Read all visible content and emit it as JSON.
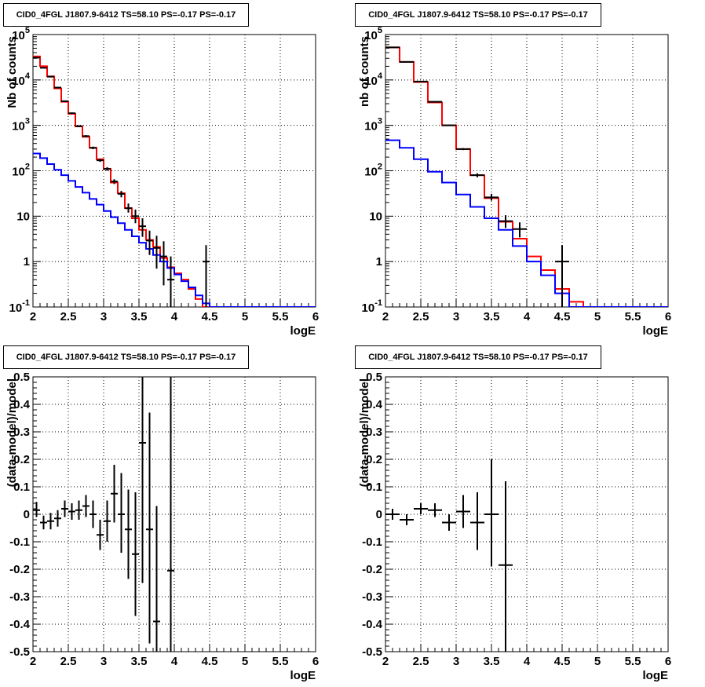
{
  "chart_data": [
    {
      "type": "step-histogram",
      "title": "CID0_4FGL J1807.9-6412 TS=58.10 PS=-0.17 PS=-0.17",
      "xlabel": "logE",
      "ylabel": "Nb of counts",
      "xlim": [
        2,
        6
      ],
      "ylim": [
        0.1,
        100000
      ],
      "yscale": "log",
      "grid": true,
      "xticks": [
        "2",
        "2.5",
        "3",
        "3.5",
        "4",
        "4.5",
        "5",
        "5.5",
        "6"
      ],
      "yticks": [
        {
          "value": 0.1,
          "base": "10",
          "exp": "-1"
        },
        {
          "value": 1,
          "label": "1"
        },
        {
          "value": 10,
          "label": "10"
        },
        {
          "value": 100,
          "base": "10",
          "exp": "2"
        },
        {
          "value": 1000,
          "base": "10",
          "exp": "3"
        },
        {
          "value": 10000,
          "base": "10",
          "exp": "4"
        },
        {
          "value": 100000,
          "base": "10",
          "exp": "5"
        }
      ],
      "bin_edges": [
        2.0,
        2.1,
        2.2,
        2.3,
        2.4,
        2.5,
        2.6,
        2.7,
        2.8,
        2.9,
        3.0,
        3.1,
        3.2,
        3.3,
        3.4,
        3.5,
        3.6,
        3.7,
        3.8,
        3.9,
        4.0,
        4.1,
        4.2,
        4.3,
        4.4,
        4.5,
        4.6,
        4.7,
        4.8,
        4.9,
        5.0,
        5.1,
        5.2,
        5.3,
        5.4,
        5.5,
        5.6,
        5.7,
        5.8,
        5.9,
        6.0
      ],
      "series": [
        {
          "color": "#ff0000",
          "values": [
            33000,
            20000,
            12000,
            6500,
            3300,
            1800,
            950,
            560,
            320,
            180,
            110,
            55,
            32,
            15,
            9,
            5,
            3,
            2.1,
            1.2,
            0.75,
            0.55,
            0.4,
            0.25,
            0.15,
            0.1,
            0.1,
            0.1,
            0.1,
            0.1,
            0.1,
            0.1,
            0.1,
            0.1,
            0.1,
            0.1,
            0.1,
            0.1,
            0.1,
            0.1,
            0.1
          ]
        },
        {
          "color": "#0000ff",
          "values": [
            240,
            190,
            140,
            105,
            80,
            60,
            44,
            33,
            24,
            18,
            13,
            9.5,
            7,
            5,
            3.6,
            2.6,
            1.9,
            1.4,
            1.0,
            0.72,
            0.52,
            0.37,
            0.27,
            0.18,
            0.12,
            0.1,
            0.1,
            0.1,
            0.1,
            0.1,
            0.1,
            0.1,
            0.1,
            0.1,
            0.1,
            0.1,
            0.1,
            0.1,
            0.1,
            0.1
          ]
        }
      ],
      "data_points": [
        {
          "x": 2.05,
          "y": 31000,
          "lo": 30000,
          "hi": 32000
        },
        {
          "x": 2.15,
          "y": 18500,
          "lo": 18000,
          "hi": 19000
        },
        {
          "x": 2.25,
          "y": 11800,
          "lo": 11500,
          "hi": 12100
        },
        {
          "x": 2.35,
          "y": 6800,
          "lo": 6600,
          "hi": 7000
        },
        {
          "x": 2.45,
          "y": 3400,
          "lo": 3300,
          "hi": 3500
        },
        {
          "x": 2.55,
          "y": 1850,
          "lo": 1780,
          "hi": 1920
        },
        {
          "x": 2.65,
          "y": 960,
          "lo": 910,
          "hi": 1010
        },
        {
          "x": 2.75,
          "y": 580,
          "lo": 550,
          "hi": 610
        },
        {
          "x": 2.85,
          "y": 320,
          "lo": 300,
          "hi": 340
        },
        {
          "x": 2.95,
          "y": 170,
          "lo": 157,
          "hi": 183
        },
        {
          "x": 3.05,
          "y": 110,
          "lo": 100,
          "hi": 120
        },
        {
          "x": 3.15,
          "y": 58,
          "lo": 51,
          "hi": 65
        },
        {
          "x": 3.25,
          "y": 31,
          "lo": 26,
          "hi": 36
        },
        {
          "x": 3.35,
          "y": 15,
          "lo": 12,
          "hi": 19
        },
        {
          "x": 3.45,
          "y": 10,
          "lo": 7,
          "hi": 14
        },
        {
          "x": 3.55,
          "y": 6,
          "lo": 3.5,
          "hi": 9
        },
        {
          "x": 3.65,
          "y": 2.9,
          "lo": 1.4,
          "hi": 4.8
        },
        {
          "x": 3.75,
          "y": 2.0,
          "lo": 0.7,
          "hi": 3.7
        },
        {
          "x": 3.85,
          "y": 1.3,
          "lo": 0.3,
          "hi": 2.8
        },
        {
          "x": 3.95,
          "y": 0.4,
          "lo": 0.1,
          "hi": 1.3
        },
        {
          "x": 4.45,
          "y": 1.0,
          "lo": 0.1,
          "hi": 2.3
        }
      ]
    },
    {
      "type": "step-histogram",
      "title": "CID0_4FGL J1807.9-6412 TS=58.10 PS=-0.17 PS=-0.17",
      "xlabel": "logE",
      "ylabel": "nb of counts",
      "xlim": [
        2,
        6
      ],
      "ylim": [
        0.1,
        100000
      ],
      "yscale": "log",
      "grid": true,
      "xticks": [
        "2",
        "2.5",
        "3",
        "3.5",
        "4",
        "4.5",
        "5",
        "5.5",
        "6"
      ],
      "yticks": [
        {
          "value": 0.1,
          "base": "10",
          "exp": "-1"
        },
        {
          "value": 1,
          "label": "1"
        },
        {
          "value": 10,
          "label": "10"
        },
        {
          "value": 100,
          "base": "10",
          "exp": "2"
        },
        {
          "value": 1000,
          "base": "10",
          "exp": "3"
        },
        {
          "value": 10000,
          "base": "10",
          "exp": "4"
        },
        {
          "value": 100000,
          "base": "10",
          "exp": "5"
        }
      ],
      "bin_edges": [
        2.0,
        2.2,
        2.4,
        2.6,
        2.8,
        3.0,
        3.2,
        3.4,
        3.6,
        3.8,
        4.0,
        4.2,
        4.4,
        4.6,
        4.8,
        5.0,
        5.2,
        5.4,
        5.6,
        5.8,
        6.0
      ],
      "series": [
        {
          "color": "#ff0000",
          "values": [
            52000,
            25000,
            9000,
            3200,
            1000,
            300,
            80,
            25,
            7.5,
            3.2,
            1.3,
            0.65,
            0.25,
            0.13,
            0.1,
            0.1,
            0.1,
            0.1,
            0.1,
            0.1
          ]
        },
        {
          "color": "#0000ff",
          "values": [
            470,
            320,
            180,
            95,
            55,
            30,
            16,
            9,
            5,
            2.2,
            1.0,
            0.5,
            0.2,
            0.1,
            0.1,
            0.1,
            0.1,
            0.1,
            0.1,
            0.1
          ]
        }
      ],
      "data_points": [
        {
          "x": 2.1,
          "y": 52000,
          "lo": 51000,
          "hi": 53000
        },
        {
          "x": 2.3,
          "y": 25000,
          "lo": 24500,
          "hi": 25500
        },
        {
          "x": 2.5,
          "y": 9200,
          "lo": 9000,
          "hi": 9400
        },
        {
          "x": 2.7,
          "y": 3300,
          "lo": 3200,
          "hi": 3400
        },
        {
          "x": 2.9,
          "y": 1000,
          "lo": 970,
          "hi": 1030
        },
        {
          "x": 3.1,
          "y": 300,
          "lo": 285,
          "hi": 315
        },
        {
          "x": 3.3,
          "y": 80,
          "lo": 72,
          "hi": 88
        },
        {
          "x": 3.5,
          "y": 26,
          "lo": 22,
          "hi": 31
        },
        {
          "x": 3.7,
          "y": 7.8,
          "lo": 5.5,
          "hi": 10.5
        },
        {
          "x": 3.9,
          "y": 5.2,
          "lo": 3.4,
          "hi": 7.3
        },
        {
          "x": 4.5,
          "y": 1.0,
          "lo": 0.1,
          "hi": 2.3
        }
      ]
    },
    {
      "type": "errorbar",
      "title": "CID0_4FGL J1807.9-6412 TS=58.10 PS=-0.17 PS=-0.17",
      "xlabel": "logE",
      "ylabel": "(data-model)/model",
      "xlim": [
        2,
        6
      ],
      "ylim": [
        -0.5,
        0.5
      ],
      "yscale": "linear",
      "grid": true,
      "xticks": [
        "2",
        "2.5",
        "3",
        "3.5",
        "4",
        "4.5",
        "5",
        "5.5",
        "6"
      ],
      "yticks": [
        "-0.5",
        "-0.4",
        "-0.3",
        "-0.2",
        "-0.1",
        "0",
        "0.1",
        "0.2",
        "0.3",
        "0.4",
        "0.5"
      ],
      "xerr": 0.05,
      "data_points": [
        {
          "x": 2.05,
          "y": 0.015,
          "lo": -0.01,
          "hi": 0.045
        },
        {
          "x": 2.15,
          "y": -0.03,
          "lo": -0.055,
          "hi": -0.005
        },
        {
          "x": 2.25,
          "y": -0.025,
          "lo": -0.055,
          "hi": 0.005
        },
        {
          "x": 2.35,
          "y": -0.015,
          "lo": -0.045,
          "hi": 0.015
        },
        {
          "x": 2.45,
          "y": 0.02,
          "lo": -0.01,
          "hi": 0.05
        },
        {
          "x": 2.55,
          "y": 0.01,
          "lo": -0.02,
          "hi": 0.04
        },
        {
          "x": 2.65,
          "y": 0.015,
          "lo": -0.02,
          "hi": 0.05
        },
        {
          "x": 2.75,
          "y": 0.03,
          "lo": -0.01,
          "hi": 0.07
        },
        {
          "x": 2.85,
          "y": 0.0,
          "lo": -0.05,
          "hi": 0.05
        },
        {
          "x": 2.95,
          "y": -0.075,
          "lo": -0.13,
          "hi": -0.02
        },
        {
          "x": 3.05,
          "y": -0.025,
          "lo": -0.1,
          "hi": 0.05
        },
        {
          "x": 3.15,
          "y": 0.075,
          "lo": -0.03,
          "hi": 0.18
        },
        {
          "x": 3.25,
          "y": 0.0,
          "lo": -0.14,
          "hi": 0.15
        },
        {
          "x": 3.35,
          "y": -0.055,
          "lo": -0.235,
          "hi": 0.09
        },
        {
          "x": 3.45,
          "y": -0.145,
          "lo": -0.37,
          "hi": 0.08
        },
        {
          "x": 3.55,
          "y": 0.26,
          "lo": -0.25,
          "hi": 0.5
        },
        {
          "x": 3.65,
          "y": -0.055,
          "lo": -0.47,
          "hi": 0.37
        },
        {
          "x": 3.75,
          "y": -0.39,
          "lo": -0.5,
          "hi": 0.03
        },
        {
          "x": 3.95,
          "y": -0.205,
          "lo": -0.5,
          "hi": 0.5
        }
      ]
    },
    {
      "type": "errorbar",
      "title": "CID0_4FGL J1807.9-6412 TS=58.10 PS=-0.17 PS=-0.17",
      "xlabel": "logE",
      "ylabel": "(data-model)/model",
      "xlim": [
        2,
        6
      ],
      "ylim": [
        -0.5,
        0.5
      ],
      "yscale": "linear",
      "grid": true,
      "xticks": [
        "2",
        "2.5",
        "3",
        "3.5",
        "4",
        "4.5",
        "5",
        "5.5",
        "6"
      ],
      "yticks": [
        "-0.5",
        "-0.4",
        "-0.3",
        "-0.2",
        "-0.1",
        "0",
        "0.1",
        "0.2",
        "0.3",
        "0.4",
        "0.5"
      ],
      "xerr": 0.1,
      "data_points": [
        {
          "x": 2.1,
          "y": 0.0,
          "lo": -0.02,
          "hi": 0.02
        },
        {
          "x": 2.3,
          "y": -0.02,
          "lo": -0.04,
          "hi": 0.0
        },
        {
          "x": 2.5,
          "y": 0.02,
          "lo": 0.0,
          "hi": 0.04
        },
        {
          "x": 2.7,
          "y": 0.015,
          "lo": -0.01,
          "hi": 0.04
        },
        {
          "x": 2.9,
          "y": -0.03,
          "lo": -0.06,
          "hi": 0.0
        },
        {
          "x": 3.1,
          "y": 0.01,
          "lo": -0.05,
          "hi": 0.07
        },
        {
          "x": 3.3,
          "y": -0.03,
          "lo": -0.13,
          "hi": 0.08
        },
        {
          "x": 3.5,
          "y": 0.0,
          "lo": -0.19,
          "hi": 0.2
        },
        {
          "x": 3.7,
          "y": -0.185,
          "lo": -0.5,
          "hi": 0.12
        }
      ]
    }
  ]
}
